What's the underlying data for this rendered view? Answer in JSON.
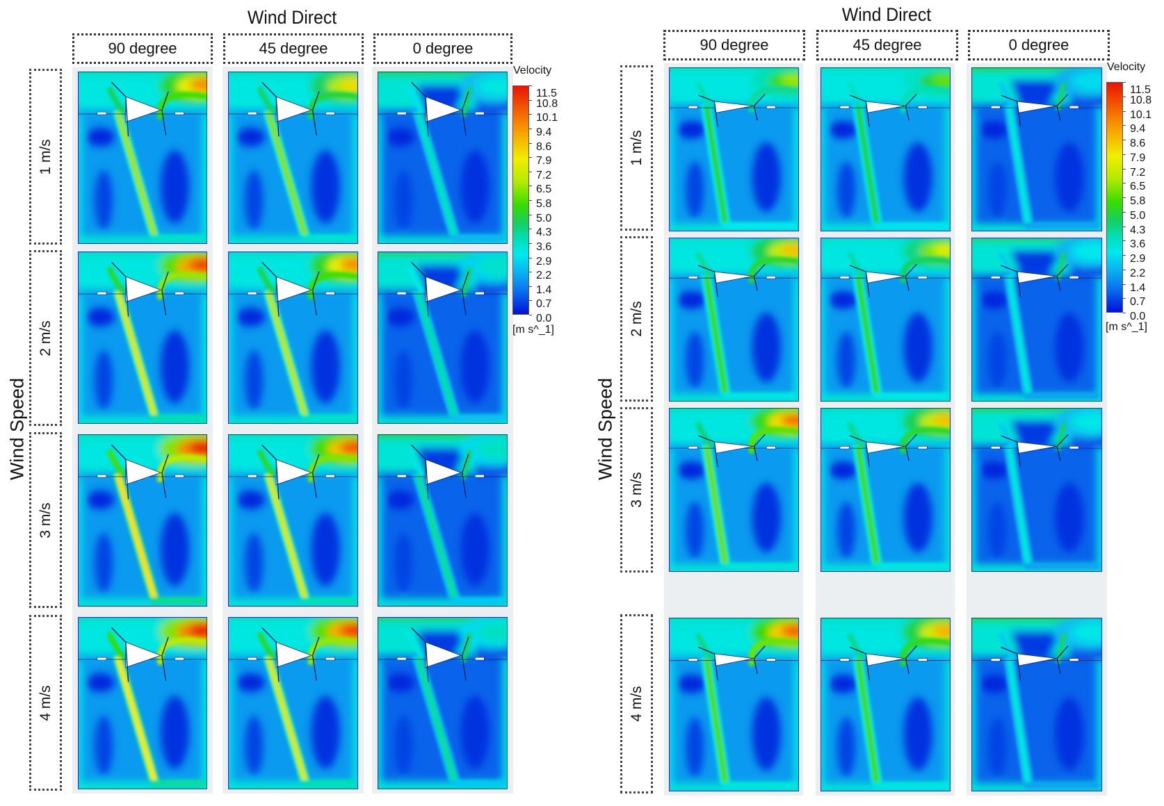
{
  "figures": [
    {
      "id": "left",
      "title": "Wind Direct",
      "side_label": "Wind Speed",
      "columns": [
        "90 degree",
        "45 degree",
        "0 degree"
      ],
      "rows": [
        "1 m/s",
        "2 m/s",
        "3 m/s",
        "4 m/s"
      ],
      "geometry_variant": "wide-wedge",
      "plume_intensity": [
        [
          0.85,
          0.75,
          0.35
        ],
        [
          0.95,
          0.85,
          0.4
        ],
        [
          1.0,
          0.92,
          0.42
        ],
        [
          1.0,
          0.95,
          0.42
        ]
      ],
      "jet_intensity": [
        [
          0.62,
          0.6,
          0.35
        ],
        [
          0.68,
          0.64,
          0.38
        ],
        [
          0.74,
          0.68,
          0.4
        ],
        [
          0.72,
          0.68,
          0.4
        ]
      ]
    },
    {
      "id": "right",
      "title": "Wind Direct",
      "side_label": "Wind Speed",
      "columns": [
        "90 degree",
        "45 degree",
        "0 degree"
      ],
      "rows": [
        "1 m/s",
        "2 m/s",
        "3 m/s",
        "4 m/s"
      ],
      "geometry_variant": "narrow-wedge",
      "plume_intensity": [
        [
          0.62,
          0.58,
          0.3
        ],
        [
          0.78,
          0.7,
          0.32
        ],
        [
          0.88,
          0.78,
          0.34
        ],
        [
          0.9,
          0.8,
          0.34
        ]
      ],
      "jet_intensity": [
        [
          0.5,
          0.48,
          0.3
        ],
        [
          0.54,
          0.52,
          0.3
        ],
        [
          0.58,
          0.55,
          0.3
        ],
        [
          0.56,
          0.55,
          0.3
        ]
      ]
    }
  ],
  "legend": {
    "title": "Velocity",
    "unit": "[m s^_1]",
    "ticks": [
      "11.5",
      "10.8",
      "10.1",
      "9.4",
      "8.6",
      "7.9",
      "7.2",
      "6.5",
      "5.8",
      "5.0",
      "4.3",
      "3.6",
      "2.9",
      "2.2",
      "1.4",
      "0.7",
      "0.0"
    ],
    "min": 0.0,
    "max": 11.5,
    "colormap": [
      "#0010d8",
      "#0a70ee",
      "#0ab0f0",
      "#00e8ee",
      "#00e0c0",
      "#14d060",
      "#38dc00",
      "#b2ea00",
      "#f0ee00",
      "#f7a000",
      "#f25a00",
      "#e81400"
    ]
  }
}
